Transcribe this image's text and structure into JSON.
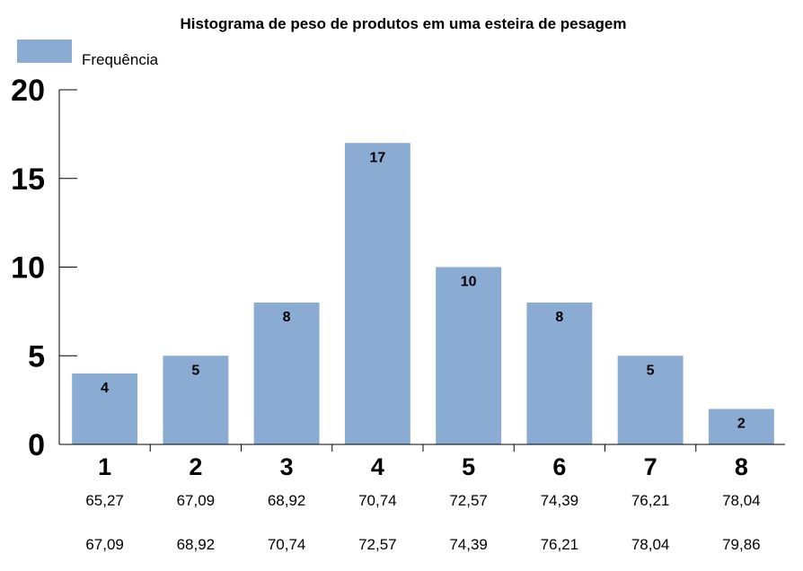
{
  "chart_data": {
    "type": "bar",
    "title": "Histograma de peso de produtos em uma esteira de pesagem",
    "legend": {
      "position": "top-left",
      "entries": [
        "Frequência"
      ]
    },
    "series": [
      {
        "name": "Frequência",
        "color": "#8aabd2",
        "values": [
          4,
          5,
          8,
          17,
          10,
          8,
          5,
          2
        ]
      }
    ],
    "categories": [
      "1",
      "2",
      "3",
      "4",
      "5",
      "6",
      "7",
      "8"
    ],
    "bin_lower": [
      "65,27",
      "67,09",
      "68,92",
      "70,74",
      "72,57",
      "74,39",
      "76,21",
      "78,04"
    ],
    "bin_upper": [
      "67,09",
      "68,92",
      "70,74",
      "72,57",
      "74,39",
      "76,21",
      "78,04",
      "79,86"
    ],
    "y_ticks": [
      "0",
      "5",
      "10",
      "15",
      "20"
    ],
    "ylim": [
      0,
      20
    ],
    "grid": false,
    "xlabel": "",
    "ylabel": ""
  }
}
